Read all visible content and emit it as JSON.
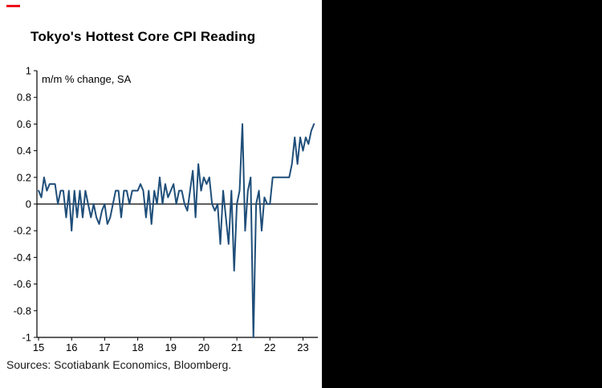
{
  "page": {
    "title": "Tokyo's Hottest Core CPI Reading",
    "sources": "Sources: Scotiabank Economics, Bloomberg."
  },
  "colors": {
    "line": "#1F4E79",
    "axis": "#000000",
    "accent_red": "#EC111A",
    "panel_black": "#000000",
    "background": "#FFFFFF"
  },
  "chart_data": {
    "type": "line",
    "title": "Tokyo's Hottest Core CPI Reading",
    "annotation": "m/m % change, SA",
    "series_name": "Tokyo core CPI m/m % change, SA",
    "x_start_year": 2015,
    "x_step_years": 0.0833333,
    "values": [
      0.1,
      0.05,
      0.2,
      0.1,
      0.15,
      0.15,
      0.15,
      0.0,
      0.1,
      0.1,
      -0.1,
      0.1,
      -0.2,
      0.1,
      -0.1,
      0.1,
      -0.1,
      0.1,
      0.0,
      -0.1,
      0.0,
      -0.1,
      -0.15,
      -0.05,
      0.0,
      -0.15,
      -0.1,
      0.0,
      0.1,
      0.1,
      -0.1,
      0.1,
      0.1,
      0.0,
      0.1,
      0.1,
      0.1,
      0.15,
      0.1,
      -0.1,
      0.1,
      -0.15,
      0.1,
      0.0,
      0.2,
      0.0,
      0.15,
      0.05,
      0.1,
      0.15,
      0.0,
      0.1,
      0.1,
      0.0,
      -0.05,
      0.1,
      0.25,
      -0.1,
      0.3,
      0.1,
      0.2,
      0.15,
      0.2,
      0.0,
      -0.05,
      0.0,
      -0.3,
      0.1,
      -0.1,
      -0.3,
      0.1,
      -0.5,
      0.0,
      0.1,
      0.6,
      -0.2,
      0.1,
      0.2,
      -1.0,
      0.0,
      0.1,
      -0.2,
      0.05,
      0.0,
      0.0,
      0.2,
      0.2,
      0.2,
      0.2,
      0.2,
      0.2,
      0.2,
      0.3,
      0.5,
      0.3,
      0.5,
      0.4,
      0.5,
      0.45,
      0.55,
      0.6
    ],
    "xlim": [
      2014.95,
      2023.45
    ],
    "ylim": [
      -1,
      1
    ],
    "yticks": [
      1,
      0.8,
      0.6,
      0.4,
      0.2,
      0,
      -0.2,
      -0.4,
      -0.6,
      -0.8,
      -1
    ],
    "ytick_labels": [
      "1",
      "0.8",
      "0.6",
      "0.4",
      "0.2",
      "0",
      "-0.2",
      "-0.4",
      "-0.6",
      "-0.8",
      "-1"
    ],
    "xticks": [
      2015,
      2016,
      2017,
      2018,
      2019,
      2020,
      2021,
      2022,
      2023
    ],
    "xtick_labels": [
      "15",
      "16",
      "17",
      "18",
      "19",
      "20",
      "21",
      "22",
      "23"
    ],
    "zero_line": true,
    "grid": false,
    "legend": null
  }
}
